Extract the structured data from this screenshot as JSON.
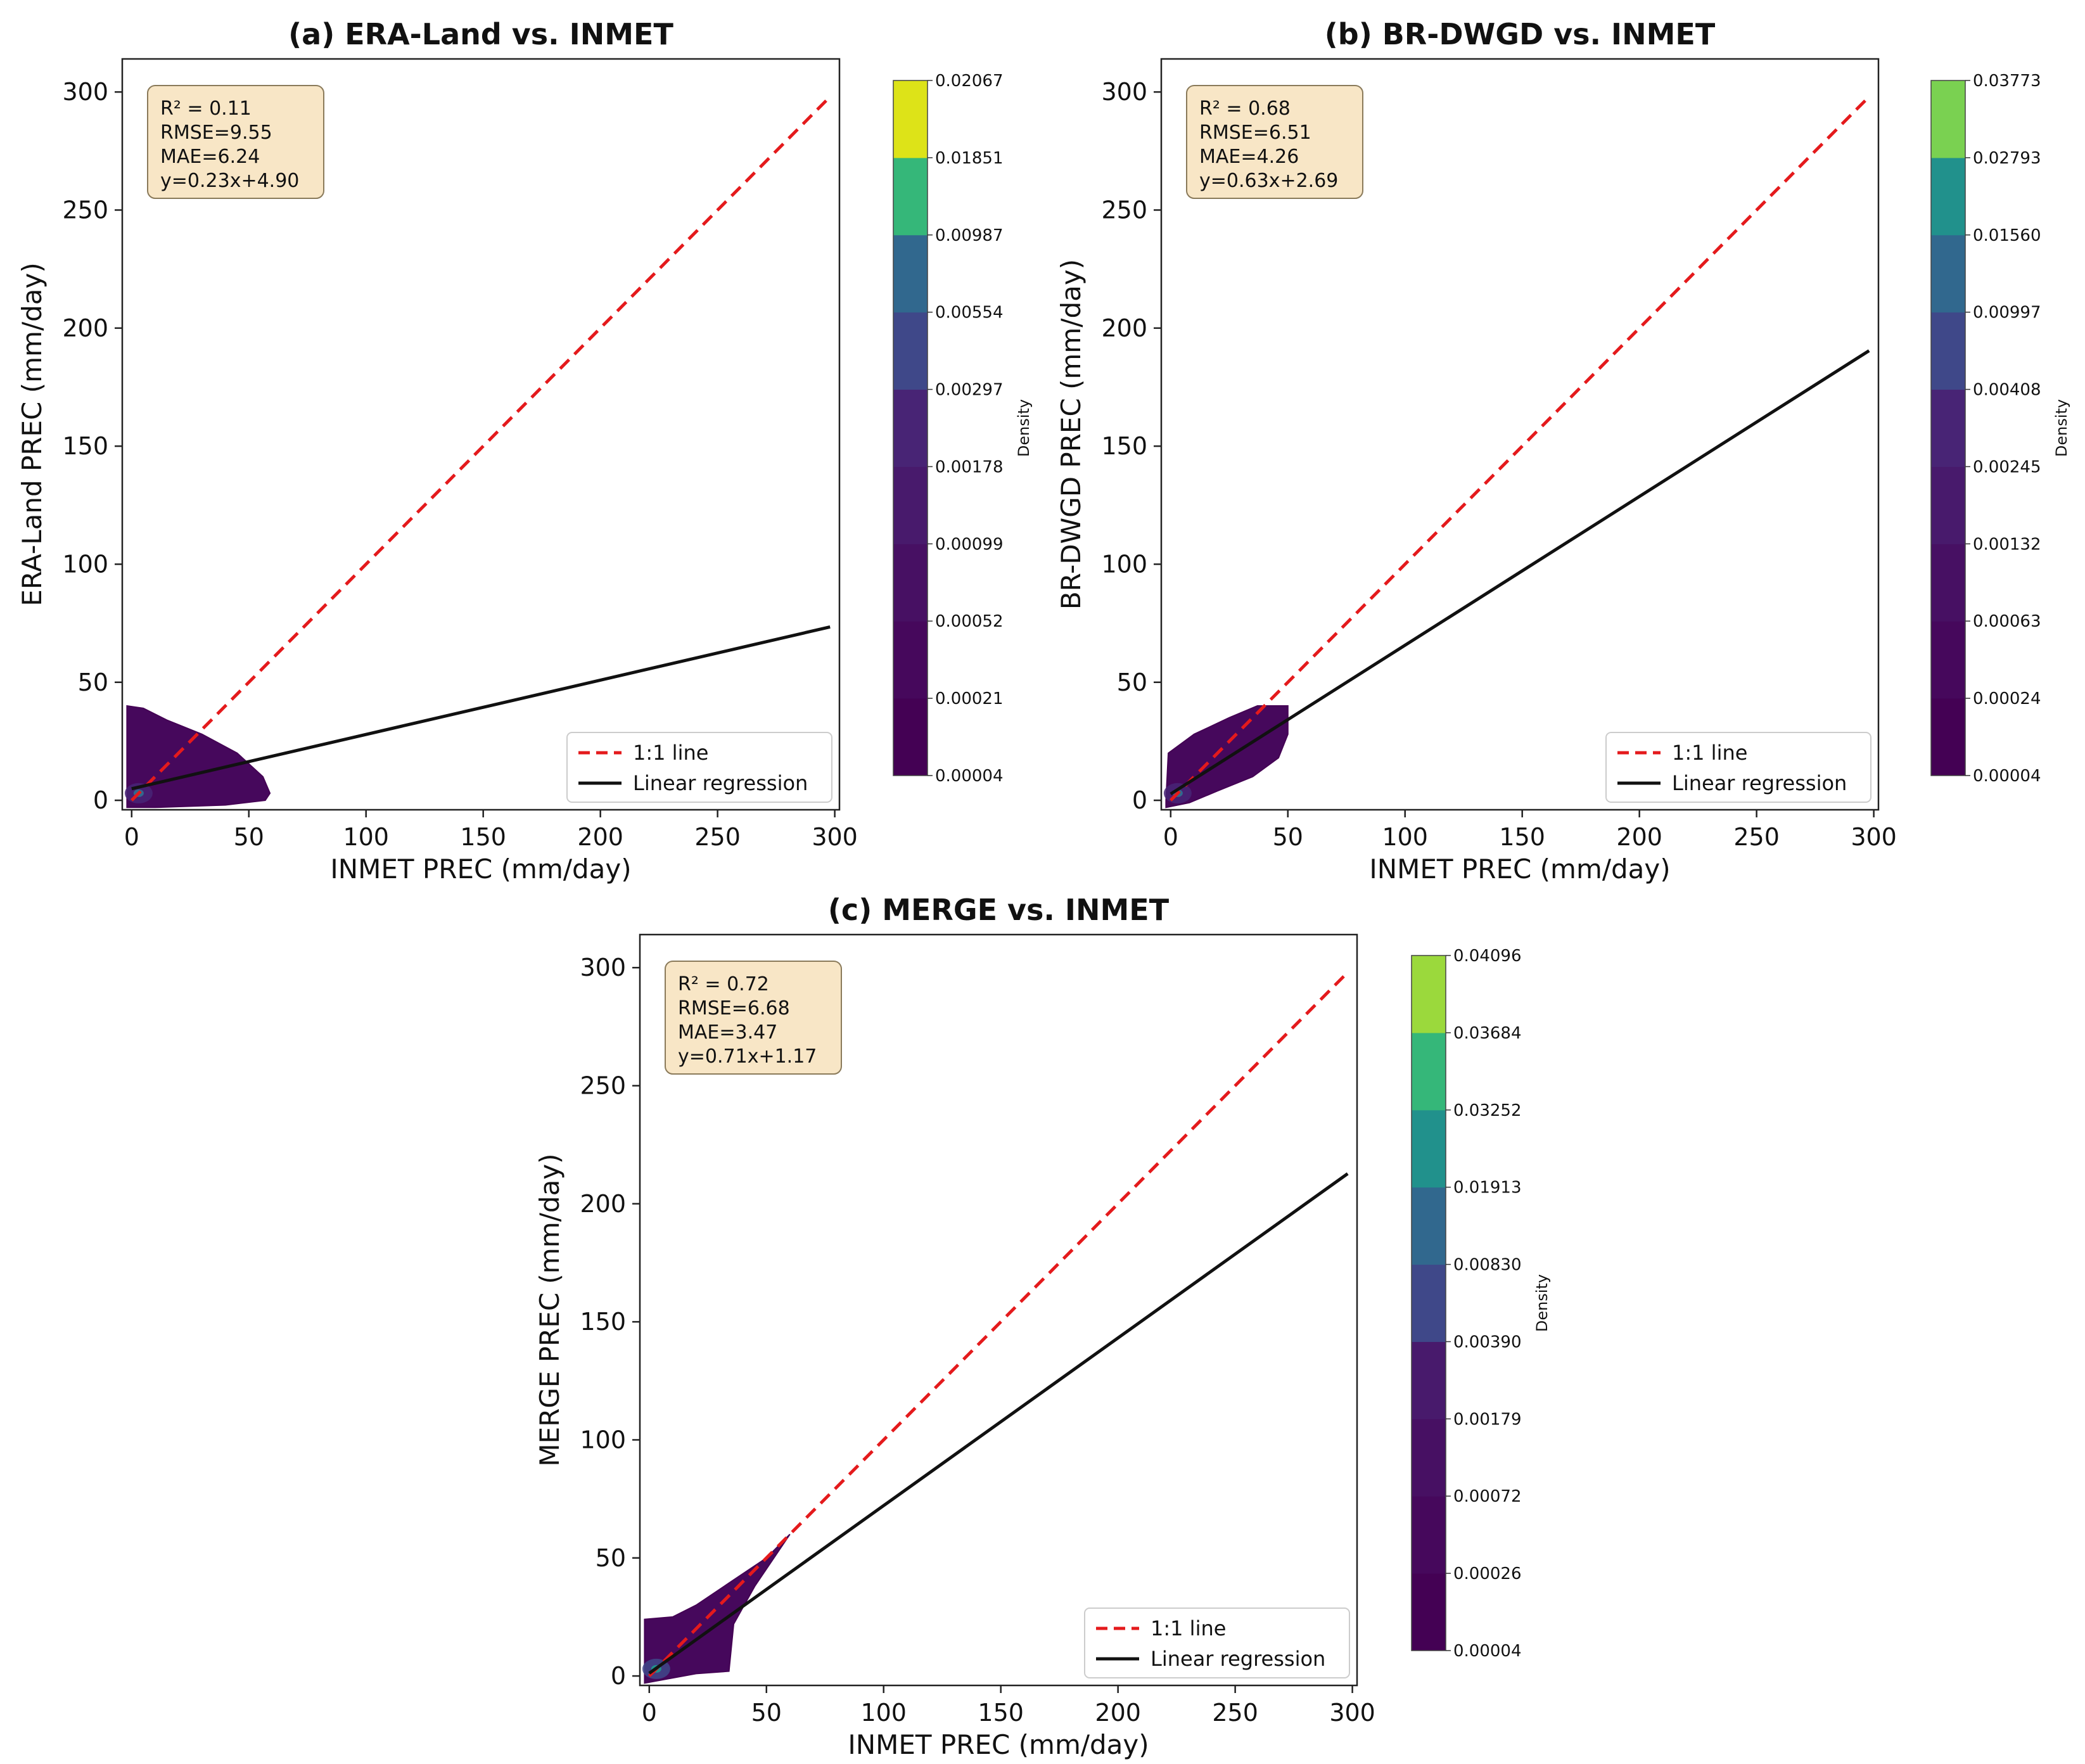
{
  "chart_data": [
    {
      "type": "scatter",
      "panel": "a",
      "title": "(a) ERA-Land vs. INMET",
      "xlabel": "INMET PREC (mm/day)",
      "ylabel": "ERA-Land PREC (mm/day)",
      "xlim": [
        -4,
        302
      ],
      "ylim": [
        -4,
        314
      ],
      "xticks": [
        0,
        50,
        100,
        150,
        200,
        250,
        300
      ],
      "yticks": [
        0,
        50,
        100,
        150,
        200,
        250,
        300
      ],
      "stats": [
        "R² = 0.11",
        "RMSE=9.55",
        "MAE=6.24",
        "y=0.23x+4.90"
      ],
      "regression": {
        "slope": 0.23,
        "intercept": 4.9
      },
      "identity_line": {
        "from": 0,
        "to": 298
      },
      "regression_line": {
        "from": 0,
        "to": 298
      },
      "density_region": [
        [
          -2,
          0
        ],
        [
          -2,
          40
        ],
        [
          5,
          39
        ],
        [
          15,
          34
        ],
        [
          30,
          28
        ],
        [
          45,
          20
        ],
        [
          56,
          10
        ],
        [
          59,
          3
        ],
        [
          57,
          0
        ],
        [
          40,
          -2
        ],
        [
          10,
          -3
        ],
        [
          -2,
          -3
        ]
      ],
      "colorbar": {
        "label": "Density",
        "levels": [
          "0.00004",
          "0.00021",
          "0.00052",
          "0.00099",
          "0.00178",
          "0.00297",
          "0.00554",
          "0.00987",
          "0.01851",
          "0.02067"
        ],
        "colors": [
          "#440154",
          "#46085c",
          "#471063",
          "#481a6c",
          "#482475",
          "#3f4889",
          "#31688e",
          "#35b779",
          "#dde318"
        ]
      },
      "legend": [
        "1:1 line",
        "Linear regression"
      ],
      "legend_position": "lower right"
    },
    {
      "type": "scatter",
      "panel": "b",
      "title": "(b) BR-DWGD vs. INMET",
      "xlabel": "INMET PREC (mm/day)",
      "ylabel": "BR-DWGD PREC (mm/day)",
      "xlim": [
        -4,
        302
      ],
      "ylim": [
        -4,
        314
      ],
      "xticks": [
        0,
        50,
        100,
        150,
        200,
        250,
        300
      ],
      "yticks": [
        0,
        50,
        100,
        150,
        200,
        250,
        300
      ],
      "stats": [
        "R² = 0.68",
        "RMSE=6.51",
        "MAE=4.26",
        "y=0.63x+2.69"
      ],
      "regression": {
        "slope": 0.63,
        "intercept": 2.69
      },
      "identity_line": {
        "from": 0,
        "to": 298
      },
      "regression_line": {
        "from": 0,
        "to": 298
      },
      "density_region": [
        [
          -2,
          0
        ],
        [
          -1,
          20
        ],
        [
          10,
          28
        ],
        [
          25,
          35
        ],
        [
          37,
          40
        ],
        [
          50,
          40
        ],
        [
          50,
          28
        ],
        [
          46,
          18
        ],
        [
          35,
          10
        ],
        [
          20,
          4
        ],
        [
          8,
          -1
        ],
        [
          -2,
          -3
        ]
      ],
      "colorbar": {
        "label": "Density",
        "levels": [
          "0.00004",
          "0.00024",
          "0.00063",
          "0.00132",
          "0.00245",
          "0.00408",
          "0.00997",
          "0.01560",
          "0.02793",
          "0.03773"
        ],
        "colors": [
          "#440154",
          "#46085c",
          "#471063",
          "#481a6c",
          "#482475",
          "#3f4889",
          "#31688e",
          "#21918c",
          "#7ad151"
        ]
      },
      "legend": [
        "1:1 line",
        "Linear regression"
      ],
      "legend_position": "lower right"
    },
    {
      "type": "scatter",
      "panel": "c",
      "title": "(c) MERGE vs. INMET",
      "xlabel": "INMET PREC (mm/day)",
      "ylabel": "MERGE PREC (mm/day)",
      "xlim": [
        -4,
        302
      ],
      "ylim": [
        -4,
        314
      ],
      "xticks": [
        0,
        50,
        100,
        150,
        200,
        250,
        300
      ],
      "yticks": [
        0,
        50,
        100,
        150,
        200,
        250,
        300
      ],
      "stats": [
        "R² = 0.72",
        "RMSE=6.68",
        "MAE=3.47",
        "y=0.71x+1.17"
      ],
      "regression": {
        "slope": 0.71,
        "intercept": 1.17
      },
      "identity_line": {
        "from": 0,
        "to": 298
      },
      "regression_line": {
        "from": 0,
        "to": 298
      },
      "density_region": [
        [
          -2,
          0
        ],
        [
          -2,
          24
        ],
        [
          10,
          25
        ],
        [
          20,
          30
        ],
        [
          35,
          40
        ],
        [
          50,
          50
        ],
        [
          60,
          60
        ],
        [
          45,
          38
        ],
        [
          36,
          22
        ],
        [
          34,
          2
        ],
        [
          20,
          1
        ],
        [
          -2,
          -3
        ]
      ],
      "colorbar": {
        "label": "Density",
        "levels": [
          "0.00004",
          "0.00026",
          "0.00072",
          "0.00179",
          "0.00390",
          "0.00830",
          "0.01913",
          "0.03252",
          "0.03684",
          "0.04096"
        ],
        "colors": [
          "#440154",
          "#46085c",
          "#471063",
          "#481a6c",
          "#3f4889",
          "#31688e",
          "#21918c",
          "#35b779",
          "#9bd93c"
        ]
      },
      "legend": [
        "1:1 line",
        "Linear regression"
      ],
      "legend_position": "lower right"
    }
  ]
}
